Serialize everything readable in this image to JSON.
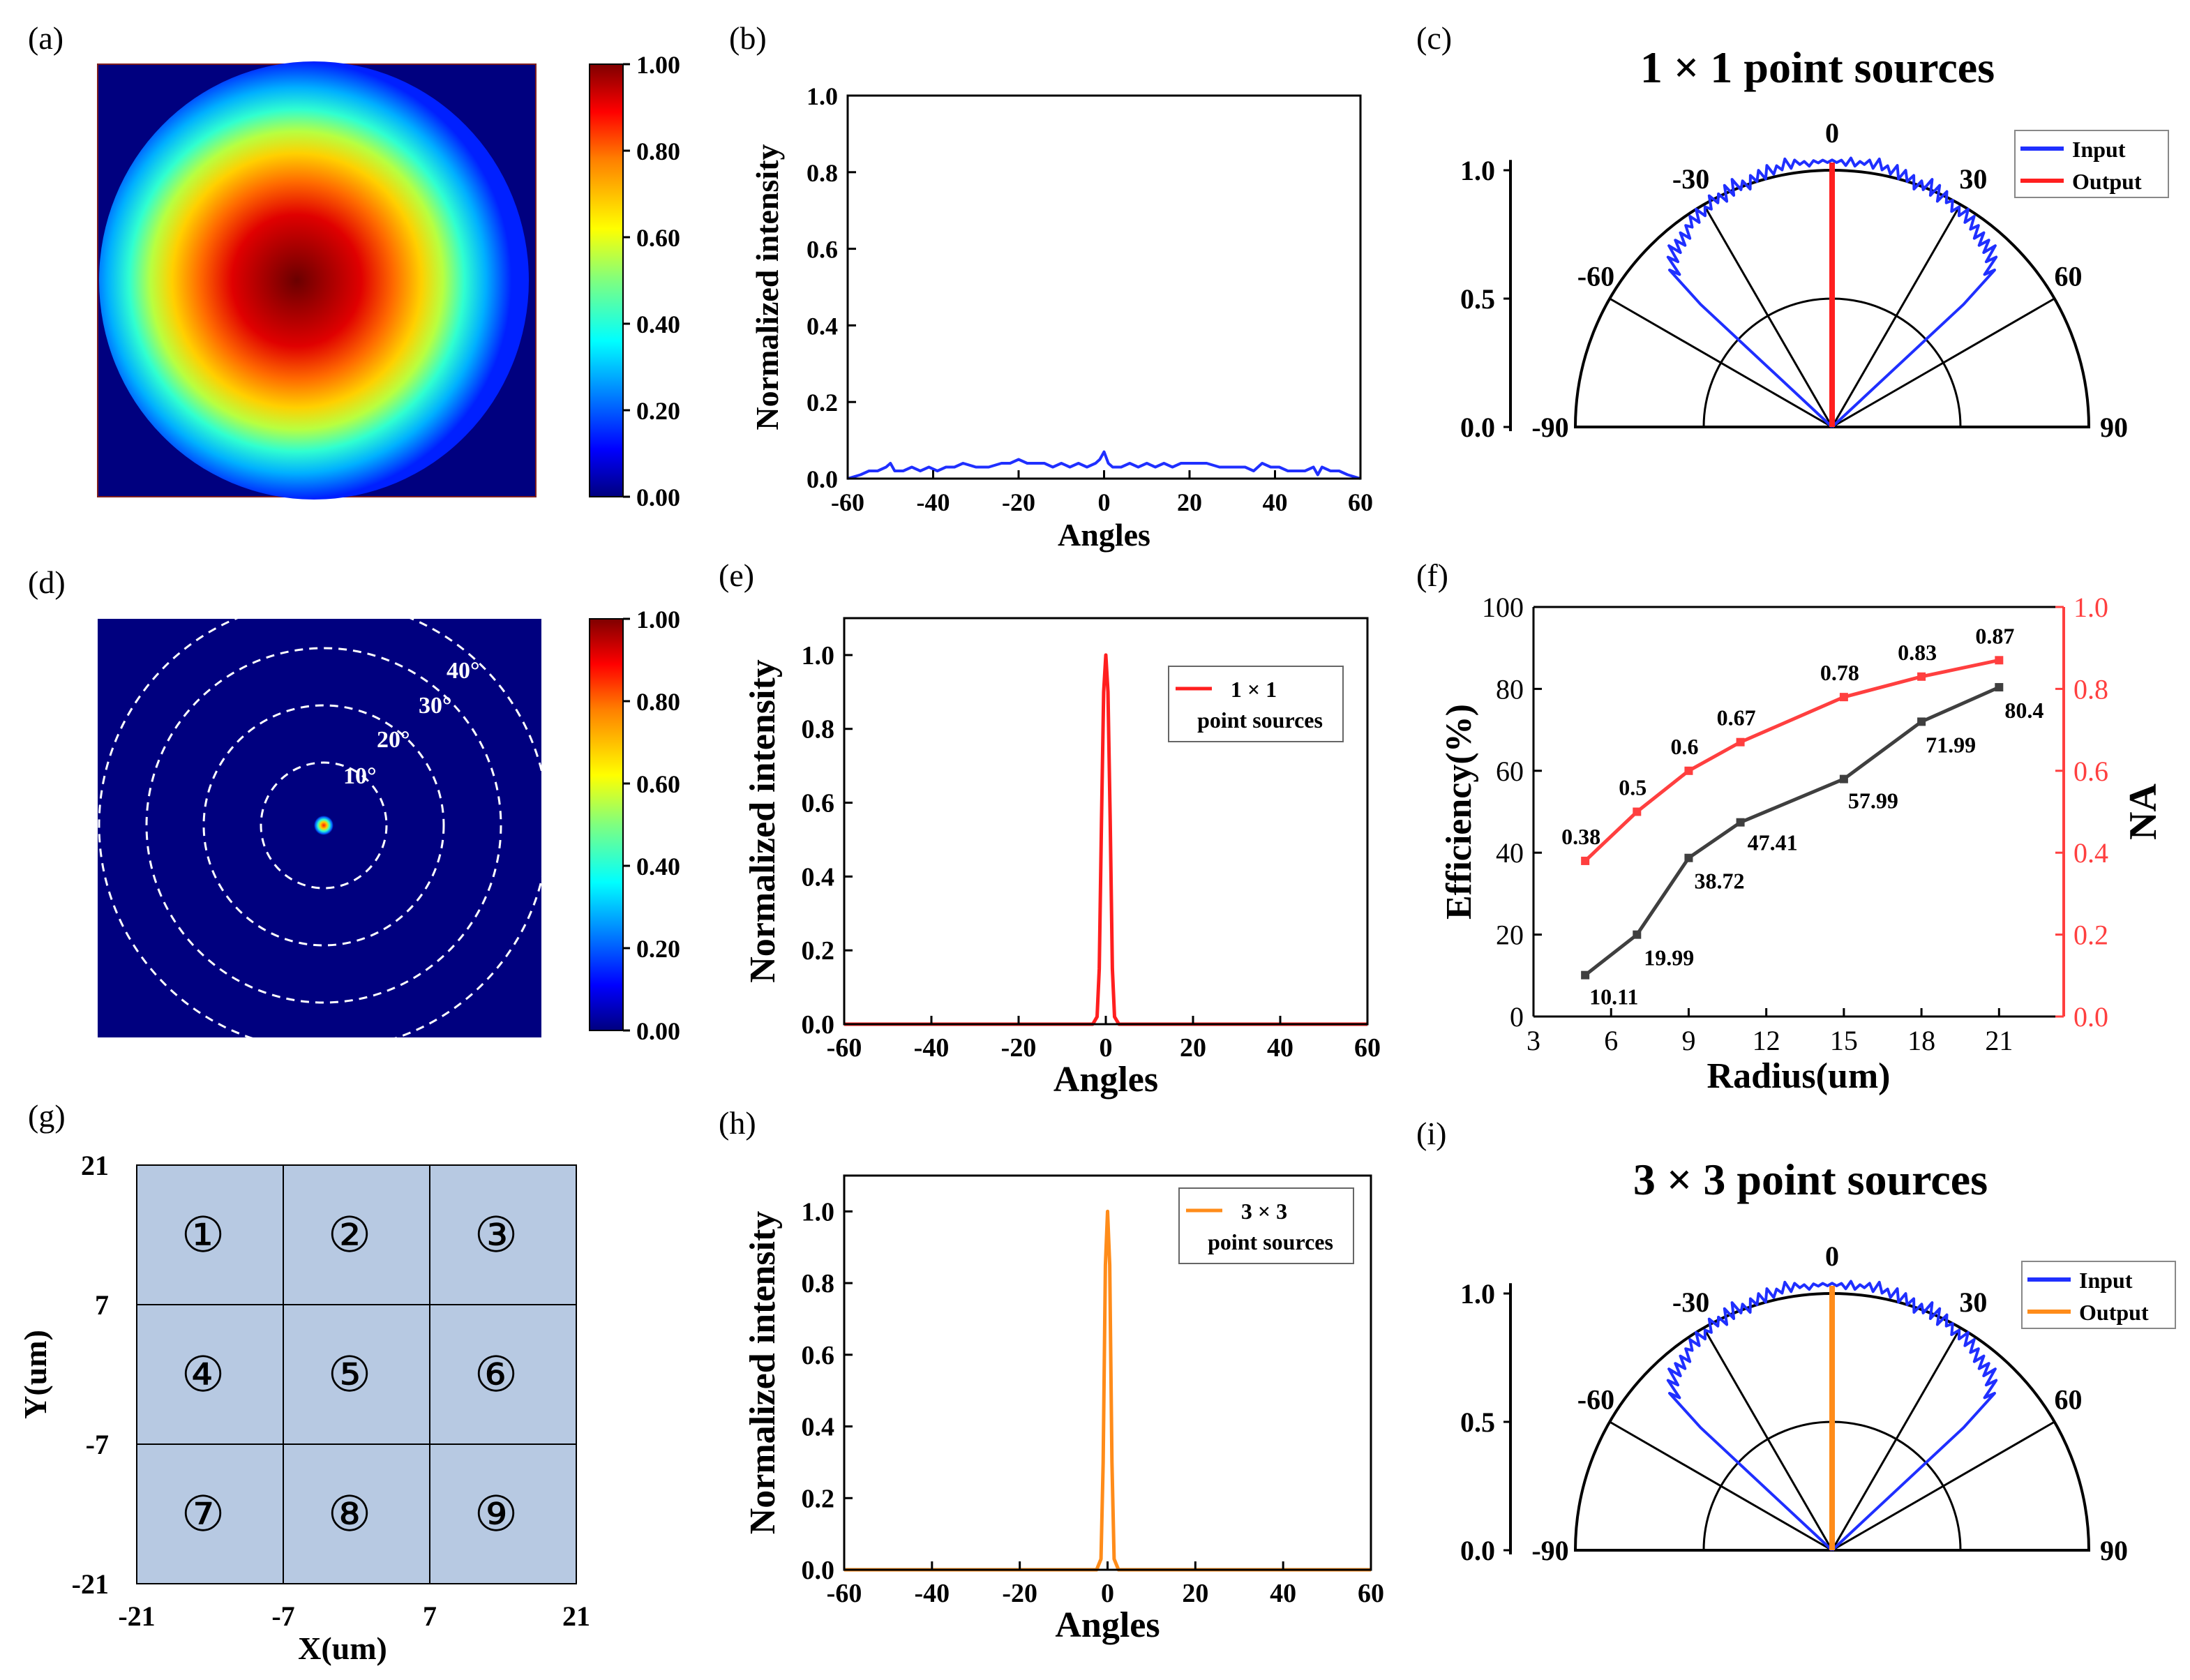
{
  "colors": {
    "jet": [
      "#00007f",
      "#0000ff",
      "#007fff",
      "#00ffff",
      "#7fff7f",
      "#ffff00",
      "#ff7f00",
      "#ff0000",
      "#7f0000"
    ],
    "blue": "#1f2fff",
    "red": "#ff1f1f",
    "orange": "#ff8c1a",
    "gray": "#3f3f3f",
    "cell": "#b7c9e2",
    "axis": "#000000"
  },
  "chart_data": [
    {
      "id": "a",
      "label": "(a)",
      "type": "heatmap",
      "description_values": {
        "peak": 1.0,
        "edge": 0.0
      },
      "colorbar": {
        "ticks": [
          "1.00",
          "0.80",
          "0.60",
          "0.40",
          "0.20",
          "0.00"
        ],
        "range": [
          0,
          1
        ]
      }
    },
    {
      "id": "b",
      "label": "(b)",
      "type": "line",
      "xlabel": "Angles",
      "ylabel": "Normalized intensity",
      "xlim": [
        -60,
        60
      ],
      "ylim": [
        0,
        1
      ],
      "xticks": [
        "-60",
        "-40",
        "-20",
        "0",
        "20",
        "40",
        "60"
      ],
      "yticks": [
        "0.0",
        "0.2",
        "0.4",
        "0.6",
        "0.8",
        "1.0"
      ],
      "series": [
        {
          "name": "intensity",
          "color": "#1f2fff",
          "x": [
            -60,
            -57,
            -55,
            -53,
            -51,
            -50,
            -49,
            -47,
            -45,
            -43,
            -41,
            -39,
            -37,
            -35,
            -33,
            -30,
            -27,
            -24,
            -22,
            -20,
            -18,
            -16,
            -14,
            -12,
            -10,
            -8,
            -6,
            -4,
            -2,
            -1,
            0,
            1,
            2,
            4,
            6,
            8,
            10,
            12,
            14,
            16,
            18,
            20,
            22,
            24,
            27,
            30,
            33,
            35,
            36,
            37,
            39,
            41,
            43,
            45,
            47,
            49,
            50,
            51,
            53,
            55,
            57,
            60
          ],
          "y": [
            0.0,
            0.01,
            0.02,
            0.02,
            0.03,
            0.04,
            0.02,
            0.02,
            0.03,
            0.02,
            0.03,
            0.02,
            0.03,
            0.03,
            0.04,
            0.03,
            0.03,
            0.04,
            0.04,
            0.05,
            0.04,
            0.04,
            0.04,
            0.03,
            0.04,
            0.03,
            0.04,
            0.03,
            0.04,
            0.05,
            0.07,
            0.04,
            0.03,
            0.03,
            0.04,
            0.03,
            0.04,
            0.03,
            0.04,
            0.03,
            0.04,
            0.04,
            0.04,
            0.04,
            0.03,
            0.03,
            0.03,
            0.02,
            0.03,
            0.04,
            0.03,
            0.03,
            0.02,
            0.02,
            0.02,
            0.03,
            0.01,
            0.03,
            0.02,
            0.02,
            0.01,
            0.0
          ]
        }
      ]
    },
    {
      "id": "c",
      "label": "(c)",
      "type": "polar",
      "title": "1 × 1 point sources",
      "angle_ticks": [
        "-90",
        "-60",
        "-30",
        "0",
        "30",
        "60",
        "90"
      ],
      "radial_ticks": [
        "0.0",
        "0.5",
        "1.0"
      ],
      "legend": [
        {
          "name": "Input",
          "color": "#1f2fff"
        },
        {
          "name": "Output",
          "color": "#ff1f1f"
        }
      ],
      "input": {
        "theta": [
          -47,
          -46,
          -45,
          -44,
          -43,
          -42,
          -41,
          -40,
          -39,
          -38,
          -37,
          -36,
          -35,
          -34,
          -33,
          -32,
          -31,
          -30,
          -29,
          -28,
          -27,
          -26,
          -25,
          -24,
          -23,
          -22,
          -21,
          -20,
          -19,
          -18,
          -17,
          -16,
          -15,
          -14,
          -13,
          -12,
          -11,
          -10,
          -9,
          -8,
          -7,
          -6,
          -5,
          -4,
          -3,
          -2,
          -1,
          0,
          1,
          2,
          3,
          4,
          5,
          6,
          7,
          8,
          9,
          10,
          11,
          12,
          13,
          14,
          15,
          16,
          17,
          18,
          19,
          20,
          21,
          22,
          23,
          24,
          25,
          26,
          27,
          28,
          29,
          30,
          31,
          32,
          33,
          34,
          35,
          36,
          37,
          38,
          39,
          40,
          41,
          42,
          43,
          44,
          45,
          46,
          47
        ],
        "r": [
          0.7,
          0.88,
          0.84,
          0.92,
          0.88,
          0.95,
          0.9,
          0.95,
          0.91,
          0.96,
          0.92,
          0.97,
          0.95,
          0.99,
          0.95,
          1.0,
          0.96,
          0.99,
          0.97,
          1.02,
          0.98,
          1.01,
          0.97,
          1.03,
          0.98,
          1.04,
          0.99,
          1.02,
          0.98,
          1.03,
          1.0,
          1.04,
          1.0,
          1.05,
          1.01,
          1.04,
          1.02,
          1.06,
          1.02,
          1.05,
          1.03,
          1.04,
          1.02,
          1.04,
          1.03,
          1.04,
          1.03,
          1.04,
          1.03,
          1.04,
          1.02,
          1.05,
          1.02,
          1.04,
          1.03,
          1.05,
          1.02,
          1.06,
          1.02,
          1.04,
          1.01,
          1.05,
          1.0,
          1.04,
          1.0,
          1.03,
          0.98,
          1.02,
          0.99,
          1.04,
          0.98,
          1.03,
          0.97,
          1.02,
          0.98,
          1.0,
          0.96,
          0.99,
          0.96,
          1.0,
          0.95,
          0.99,
          0.94,
          0.97,
          0.92,
          0.96,
          0.91,
          0.95,
          0.9,
          0.95,
          0.88,
          0.92,
          0.84,
          0.88,
          0.7
        ]
      },
      "output": {
        "theta": [
          0,
          0
        ],
        "r": [
          0,
          1.03
        ],
        "color": "#ff1f1f"
      }
    },
    {
      "id": "d",
      "label": "(d)",
      "type": "heatmap",
      "ring_labels": [
        "10°",
        "20°",
        "30°",
        "40°"
      ],
      "colorbar": {
        "ticks": [
          "1.00",
          "0.80",
          "0.60",
          "0.40",
          "0.20",
          "0.00"
        ],
        "range": [
          0,
          1
        ]
      }
    },
    {
      "id": "e",
      "label": "(e)",
      "type": "line",
      "xlabel": "Angles",
      "ylabel": "Normalized intensity",
      "xlim": [
        -60,
        60
      ],
      "ylim": [
        0,
        1.1
      ],
      "xticks": [
        "-60",
        "-40",
        "-20",
        "0",
        "20",
        "40",
        "60"
      ],
      "yticks": [
        "0.0",
        "0.2",
        "0.4",
        "0.6",
        "0.8",
        "1.0"
      ],
      "legend": {
        "line1": "1 × 1",
        "line2": "point sources"
      },
      "series": [
        {
          "name": "1 × 1 point sources",
          "color": "#ff1f1f",
          "x": [
            -60,
            -3,
            -2,
            -1.5,
            -1,
            -0.5,
            0,
            0.5,
            1,
            1.5,
            2,
            3,
            60
          ],
          "y": [
            0,
            0,
            0.02,
            0.15,
            0.55,
            0.9,
            1.0,
            0.9,
            0.55,
            0.15,
            0.02,
            0,
            0
          ]
        }
      ]
    },
    {
      "id": "f",
      "label": "(f)",
      "type": "line",
      "xlabel": "Radius(um)",
      "ylabel": "Efficiency(%)",
      "y2label": "NA",
      "xlim": [
        3,
        23.5
      ],
      "ylim": [
        0,
        100
      ],
      "y2lim": [
        0,
        1
      ],
      "xticks": [
        "3",
        "6",
        "9",
        "12",
        "15",
        "18",
        "21"
      ],
      "yticks": [
        "0",
        "20",
        "40",
        "60",
        "80",
        "100"
      ],
      "y2ticks": [
        "0.0",
        "0.2",
        "0.4",
        "0.6",
        "0.8",
        "1.0"
      ],
      "series": [
        {
          "name": "Efficiency",
          "axis": "left",
          "color": "#3f3f3f",
          "x": [
            5,
            7,
            9,
            11,
            15,
            18,
            21
          ],
          "values": [
            10.11,
            19.99,
            38.72,
            47.41,
            57.99,
            71.99,
            80.4
          ],
          "labels": [
            "10.11",
            "19.99",
            "38.72",
            "47.41",
            "57.99",
            "71.99",
            "80.4"
          ]
        },
        {
          "name": "NA",
          "axis": "right",
          "color": "#ff3f3f",
          "x": [
            5,
            7,
            9,
            11,
            15,
            18,
            21
          ],
          "values": [
            0.38,
            0.5,
            0.6,
            0.67,
            0.78,
            0.83,
            0.87
          ],
          "labels": [
            "0.38",
            "0.5",
            "0.6",
            "0.67",
            "0.78",
            "0.83",
            "0.87"
          ]
        }
      ]
    },
    {
      "id": "g",
      "label": "(g)",
      "type": "grid",
      "xlabel": "X(um)",
      "ylabel": "Y(um)",
      "xticks": [
        "-21",
        "-7",
        "7",
        "21"
      ],
      "yticks": [
        "21",
        "7",
        "-7",
        "-21"
      ],
      "cells": [
        "①",
        "②",
        "③",
        "④",
        "⑤",
        "⑥",
        "⑦",
        "⑧",
        "⑨"
      ]
    },
    {
      "id": "h",
      "label": "(h)",
      "type": "line",
      "xlabel": "Angles",
      "ylabel": "Normalized intensity",
      "xlim": [
        -60,
        60
      ],
      "ylim": [
        0,
        1.1
      ],
      "xticks": [
        "-60",
        "-40",
        "-20",
        "0",
        "20",
        "40",
        "60"
      ],
      "yticks": [
        "0.0",
        "0.2",
        "0.4",
        "0.6",
        "0.8",
        "1.0"
      ],
      "legend": {
        "line1": "3 × 3",
        "line2": "point sources"
      },
      "series": [
        {
          "name": "3 × 3 point sources",
          "color": "#ff8c1a",
          "x": [
            -60,
            -2.5,
            -1.5,
            -1,
            -0.5,
            0,
            0.5,
            1,
            1.5,
            2.5,
            60
          ],
          "y": [
            0,
            0,
            0.03,
            0.3,
            0.85,
            1.0,
            0.85,
            0.3,
            0.03,
            0,
            0
          ]
        }
      ]
    },
    {
      "id": "i",
      "label": "(i)",
      "type": "polar",
      "title": "3 × 3 point sources",
      "angle_ticks": [
        "-90",
        "-60",
        "-30",
        "0",
        "30",
        "60",
        "90"
      ],
      "radial_ticks": [
        "0.0",
        "0.5",
        "1.0"
      ],
      "legend": [
        {
          "name": "Input",
          "color": "#1f2fff"
        },
        {
          "name": "Output",
          "color": "#ff8c1a"
        }
      ],
      "output": {
        "theta": [
          0,
          0
        ],
        "r": [
          0,
          1.03
        ],
        "color": "#ff8c1a"
      }
    }
  ]
}
